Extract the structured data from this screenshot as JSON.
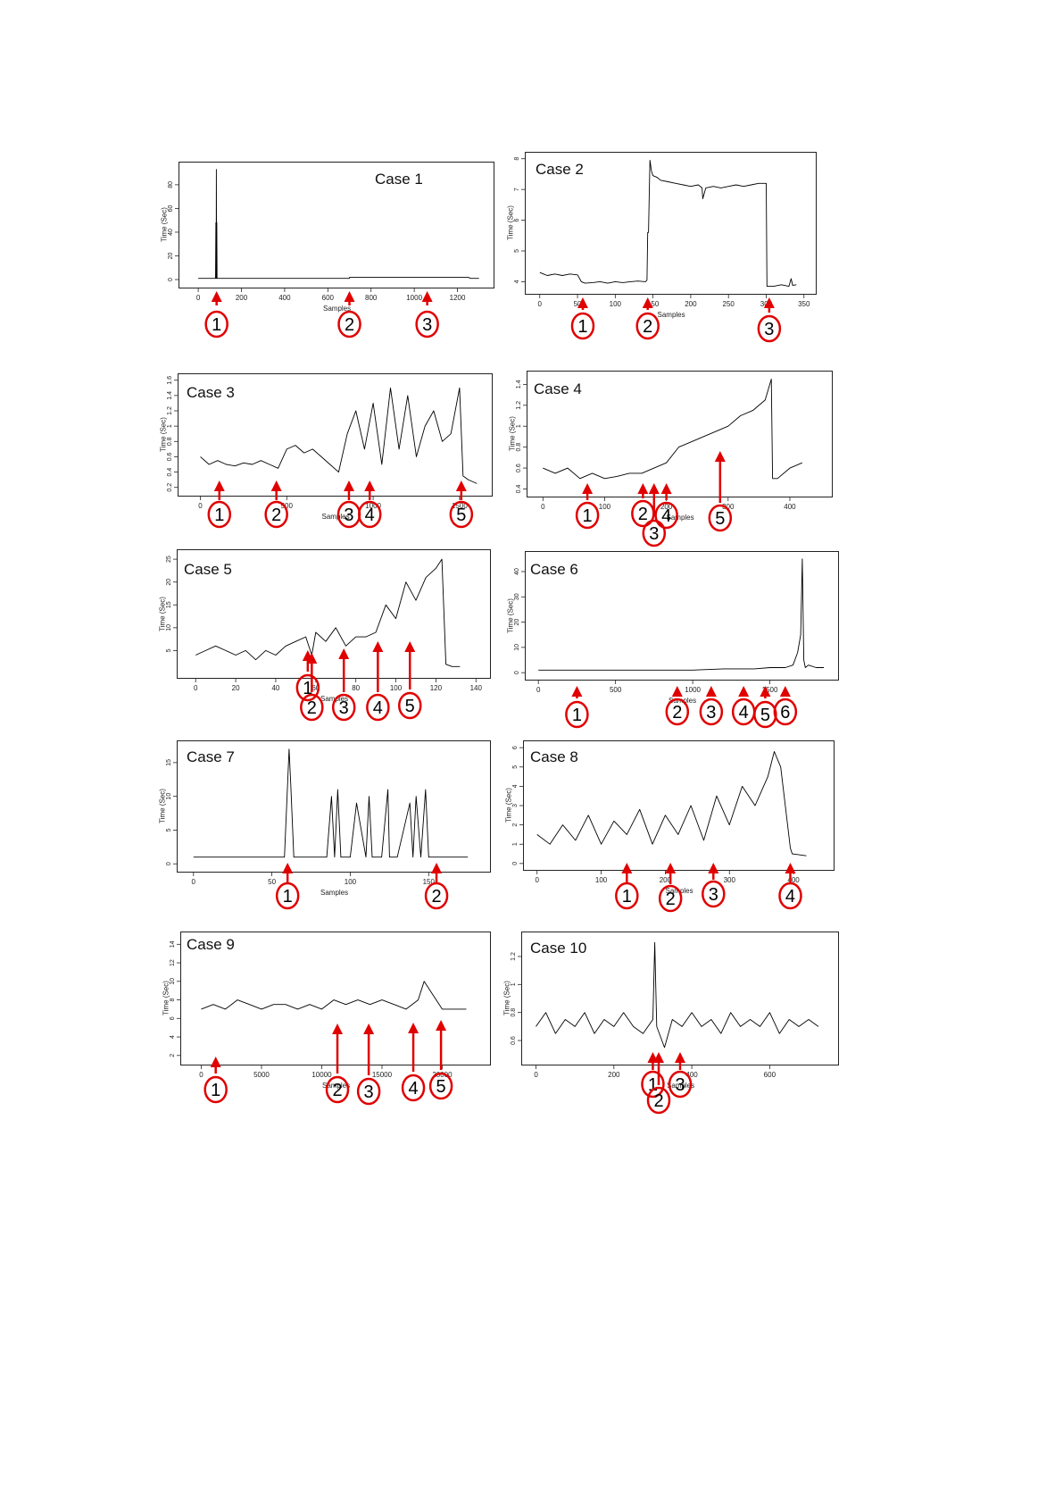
{
  "figure": {
    "accent_color": "#e00000",
    "line_color": "#000000"
  },
  "chart_data": [
    {
      "type": "line",
      "title": "Case 1",
      "ylabel": "Time (Sec)",
      "xlabel": "Samples",
      "x_ticks": [
        0,
        200,
        400,
        600,
        800,
        1000,
        1200
      ],
      "y_ticks": [
        0,
        20,
        40,
        60,
        80
      ],
      "xlim": [
        -50,
        1330
      ],
      "ylim": [
        -3,
        95
      ],
      "grid": false,
      "series": [
        {
          "x": [
            0,
            20,
            40,
            60,
            70,
            80,
            82,
            83,
            84,
            85,
            86,
            87,
            88,
            90,
            100,
            150,
            200,
            300,
            400,
            500,
            600,
            650,
            700,
            701,
            750,
            800,
            900,
            1000,
            1100,
            1200,
            1250,
            1260,
            1300
          ],
          "y": [
            1,
            1,
            1,
            1,
            1,
            1,
            48,
            1,
            93,
            1,
            48,
            1,
            1,
            1,
            1,
            1,
            1,
            1,
            1,
            1,
            1,
            1,
            1,
            2,
            2,
            2,
            2,
            2,
            2,
            2,
            2,
            1,
            1
          ]
        }
      ],
      "annotations": [
        {
          "label": "1",
          "x": 85
        },
        {
          "label": "2",
          "x": 700
        },
        {
          "label": "3",
          "x": 1060
        }
      ]
    },
    {
      "type": "line",
      "title": "Case 2",
      "ylabel": "Time (Sec)",
      "xlabel": "Samples",
      "x_ticks": [
        0,
        50,
        100,
        150,
        200,
        250,
        300,
        350
      ],
      "y_ticks": [
        4,
        5,
        6,
        7,
        8
      ],
      "xlim": [
        -8,
        355
      ],
      "ylim": [
        3.75,
        8.05
      ],
      "grid": false,
      "series": [
        {
          "x": [
            0,
            5,
            10,
            20,
            30,
            40,
            50,
            55,
            60,
            70,
            80,
            90,
            100,
            110,
            120,
            130,
            140,
            142,
            143,
            144,
            146,
            148,
            150,
            155,
            160,
            170,
            180,
            190,
            200,
            210,
            215,
            216,
            220,
            230,
            240,
            250,
            260,
            270,
            280,
            290,
            300,
            301,
            302,
            305,
            310,
            320,
            330,
            333,
            335,
            340
          ],
          "y": [
            4.3,
            4.25,
            4.2,
            4.25,
            4.2,
            4.25,
            4.22,
            4.0,
            3.95,
            3.97,
            4.0,
            3.95,
            4.0,
            3.97,
            4.0,
            4.02,
            4.0,
            4.05,
            5.6,
            5.6,
            7.95,
            7.6,
            7.45,
            7.4,
            7.3,
            7.25,
            7.2,
            7.15,
            7.1,
            7.15,
            7.05,
            6.7,
            7.05,
            7.1,
            7.05,
            7.1,
            7.15,
            7.1,
            7.15,
            7.2,
            7.2,
            3.85,
            3.85,
            3.85,
            3.85,
            3.9,
            3.85,
            4.1,
            3.88,
            3.9
          ]
        }
      ],
      "annotations": [
        {
          "label": "1",
          "x": 57
        },
        {
          "label": "2",
          "x": 143
        },
        {
          "label": "3",
          "x": 304
        }
      ]
    },
    {
      "type": "line",
      "title": "Case 3",
      "ylabel": "Time (Sec)",
      "xlabel": "Samples",
      "x_ticks": [
        0,
        500,
        1000,
        1500
      ],
      "y_ticks": [
        0.2,
        0.4,
        0.6,
        0.8,
        1.0,
        1.2,
        1.4,
        1.6
      ],
      "xlim": [
        -80,
        1640
      ],
      "ylim": [
        0.15,
        1.62
      ],
      "grid": false,
      "series": [
        {
          "x": [
            0,
            50,
            100,
            150,
            200,
            250,
            300,
            350,
            400,
            450,
            500,
            550,
            600,
            650,
            700,
            750,
            800,
            850,
            900,
            950,
            1000,
            1050,
            1100,
            1150,
            1200,
            1250,
            1300,
            1350,
            1400,
            1450,
            1500,
            1520,
            1550,
            1600
          ],
          "y": [
            0.6,
            0.5,
            0.55,
            0.5,
            0.48,
            0.52,
            0.5,
            0.55,
            0.5,
            0.45,
            0.7,
            0.75,
            0.65,
            0.7,
            0.6,
            0.5,
            0.4,
            0.9,
            1.2,
            0.7,
            1.3,
            0.5,
            1.5,
            0.7,
            1.4,
            0.6,
            1.0,
            1.2,
            0.8,
            0.9,
            1.5,
            0.35,
            0.3,
            0.25
          ]
        }
      ],
      "annotations": [
        {
          "label": "1",
          "x": 110
        },
        {
          "label": "2",
          "x": 440
        },
        {
          "label": "3",
          "x": 860
        },
        {
          "label": "4",
          "x": 980
        },
        {
          "label": "5",
          "x": 1510
        }
      ]
    },
    {
      "type": "line",
      "title": "Case 4",
      "ylabel": "Time (Sec)",
      "xlabel": "Samples",
      "x_ticks": [
        0,
        100,
        200,
        300,
        400
      ],
      "y_ticks": [
        0.4,
        0.6,
        0.8,
        1.0,
        1.2,
        1.4
      ],
      "xlim": [
        -12,
        455
      ],
      "ylim": [
        0.37,
        1.48
      ],
      "grid": false,
      "series": [
        {
          "x": [
            0,
            20,
            40,
            60,
            80,
            100,
            120,
            140,
            160,
            180,
            200,
            220,
            240,
            260,
            280,
            300,
            320,
            340,
            360,
            370,
            372,
            380,
            400,
            420
          ],
          "y": [
            0.6,
            0.55,
            0.6,
            0.5,
            0.55,
            0.5,
            0.52,
            0.55,
            0.55,
            0.6,
            0.65,
            0.8,
            0.85,
            0.9,
            0.95,
            1.0,
            1.1,
            1.15,
            1.25,
            1.45,
            0.5,
            0.5,
            0.6,
            0.65
          ]
        }
      ],
      "annotations": [
        {
          "label": "1",
          "x": 72
        },
        {
          "label": "2",
          "x": 162
        },
        {
          "label": "3",
          "x": 180
        },
        {
          "label": "4",
          "x": 200
        },
        {
          "label": "5",
          "x": 287
        }
      ]
    },
    {
      "type": "line",
      "title": "Case 5",
      "ylabel": "Time (Sec)",
      "xlabel": "Samples",
      "x_ticks": [
        0,
        20,
        40,
        60,
        80,
        100,
        120,
        140
      ],
      "y_ticks": [
        5,
        10,
        15,
        20,
        25
      ],
      "xlim": [
        -5,
        143
      ],
      "ylim": [
        0,
        26
      ],
      "grid": false,
      "series": [
        {
          "x": [
            0,
            5,
            10,
            15,
            20,
            25,
            30,
            35,
            40,
            45,
            50,
            55,
            58,
            60,
            65,
            70,
            75,
            80,
            85,
            90,
            95,
            100,
            105,
            110,
            115,
            120,
            123,
            125,
            128,
            132
          ],
          "y": [
            4,
            5,
            6,
            5,
            4,
            5,
            3,
            5,
            4,
            6,
            7,
            8,
            4,
            9,
            7,
            10,
            6,
            8,
            8,
            9,
            15,
            12,
            20,
            16,
            21,
            23,
            25,
            2,
            1.5,
            1.5
          ]
        }
      ],
      "annotations": [
        {
          "label": "1",
          "x": 56
        },
        {
          "label": "2",
          "x": 58
        },
        {
          "label": "3",
          "x": 74
        },
        {
          "label": "4",
          "x": 91
        },
        {
          "label": "5",
          "x": 107
        }
      ]
    },
    {
      "type": "line",
      "title": "Case 6",
      "ylabel": "Time (Sec)",
      "xlabel": "Samples",
      "x_ticks": [
        0,
        500,
        1000,
        1500
      ],
      "y_ticks": [
        0,
        10,
        20,
        30,
        40
      ],
      "xlim": [
        -30,
        1890
      ],
      "ylim": [
        -1,
        46
      ],
      "grid": false,
      "series": [
        {
          "x": [
            0,
            200,
            400,
            600,
            800,
            1000,
            1200,
            1400,
            1500,
            1600,
            1650,
            1680,
            1700,
            1710,
            1720,
            1730,
            1750,
            1800,
            1850
          ],
          "y": [
            1,
            1,
            1,
            1,
            1,
            1,
            1.5,
            1.5,
            2,
            2,
            3,
            8,
            15,
            45,
            5,
            2,
            3,
            2,
            2
          ]
        }
      ],
      "annotations": [
        {
          "label": "1",
          "x": 250
        },
        {
          "label": "2",
          "x": 900
        },
        {
          "label": "3",
          "x": 1120
        },
        {
          "label": "4",
          "x": 1330
        },
        {
          "label": "5",
          "x": 1470
        },
        {
          "label": "6",
          "x": 1600
        }
      ]
    },
    {
      "type": "line",
      "title": "Case 7",
      "ylabel": "Time (Sec)",
      "xlabel": "Samples",
      "x_ticks": [
        0,
        50,
        100,
        150
      ],
      "y_ticks": [
        0,
        5,
        10,
        15
      ],
      "xlim": [
        -5,
        184
      ],
      "ylim": [
        -0.5,
        17.5
      ],
      "grid": false,
      "series": [
        {
          "x": [
            0,
            20,
            40,
            58,
            61,
            62,
            64,
            66,
            68,
            85,
            88,
            90,
            92,
            94,
            100,
            104,
            110,
            112,
            114,
            120,
            124,
            125,
            127,
            130,
            138,
            140,
            142,
            145,
            148,
            150,
            160,
            175
          ],
          "y": [
            1,
            1,
            1,
            1,
            17,
            12,
            1,
            1,
            1,
            1,
            10,
            1,
            11,
            1,
            1,
            9,
            1,
            10,
            1,
            1,
            11,
            1,
            1,
            1,
            9,
            1,
            10,
            1,
            11,
            1,
            1,
            1
          ]
        }
      ],
      "annotations": [
        {
          "label": "1",
          "x": 60
        },
        {
          "label": "2",
          "x": 155
        }
      ]
    },
    {
      "type": "line",
      "title": "Case 8",
      "ylabel": "Time (Sec)",
      "xlabel": "Samples",
      "x_ticks": [
        0,
        100,
        200,
        300,
        400
      ],
      "y_ticks": [
        0,
        1,
        2,
        3,
        4,
        5,
        6
      ],
      "xlim": [
        -8,
        450
      ],
      "ylim": [
        -0.1,
        6.1
      ],
      "grid": false,
      "series": [
        {
          "x": [
            0,
            20,
            40,
            60,
            80,
            100,
            120,
            140,
            160,
            180,
            200,
            220,
            240,
            260,
            280,
            300,
            320,
            340,
            360,
            370,
            380,
            395,
            398,
            420
          ],
          "y": [
            1.5,
            1.0,
            2.0,
            1.2,
            2.5,
            1.0,
            2.2,
            1.5,
            2.8,
            1.0,
            2.5,
            1.5,
            3.0,
            1.2,
            3.5,
            2.0,
            4.0,
            3.0,
            4.5,
            5.8,
            5.0,
            0.8,
            0.5,
            0.4
          ]
        }
      ],
      "annotations": [
        {
          "label": "1",
          "x": 140
        },
        {
          "label": "2",
          "x": 208
        },
        {
          "label": "3",
          "x": 275
        },
        {
          "label": "4",
          "x": 395
        }
      ]
    },
    {
      "type": "line",
      "title": "Case 9",
      "ylabel": "Time (Sec)",
      "xlabel": "Samples",
      "x_ticks": [
        0,
        5000,
        10000,
        15000,
        20000
      ],
      "y_ticks": [
        2,
        4,
        6,
        8,
        10,
        12,
        14
      ],
      "xlim": [
        -1000,
        23300
      ],
      "ylim": [
        1.5,
        14.8
      ],
      "grid": false,
      "series": [
        {
          "x": [
            0,
            1000,
            2000,
            3000,
            4000,
            5000,
            6000,
            7000,
            8000,
            9000,
            10000,
            11000,
            12000,
            13000,
            14000,
            15000,
            16000,
            17000,
            18000,
            18500,
            19000,
            20000,
            21000,
            22000
          ],
          "y": [
            7,
            7.5,
            7,
            8,
            7.5,
            7,
            7.5,
            7.5,
            7,
            7.5,
            7,
            8,
            7.5,
            8,
            7.5,
            8,
            7.5,
            7,
            8,
            10,
            9,
            7,
            7,
            7
          ]
        }
      ],
      "annotations": [
        {
          "label": "1",
          "x": 1200
        },
        {
          "label": "2",
          "x": 11300
        },
        {
          "label": "3",
          "x": 13900
        },
        {
          "label": "4",
          "x": 17600
        },
        {
          "label": "5",
          "x": 19900
        }
      ]
    },
    {
      "type": "line",
      "title": "Case 10",
      "ylabel": "Time (Sec)",
      "xlabel": "Samples",
      "x_ticks": [
        0,
        200,
        400,
        600
      ],
      "y_ticks": [
        0.6,
        0.8,
        1.0,
        1.2
      ],
      "xlim": [
        -15,
        755
      ],
      "ylim": [
        0.46,
        1.34
      ],
      "grid": false,
      "series": [
        {
          "x": [
            0,
            25,
            50,
            75,
            100,
            125,
            150,
            175,
            200,
            225,
            250,
            275,
            300,
            305,
            307,
            310,
            330,
            350,
            375,
            400,
            425,
            450,
            475,
            500,
            525,
            550,
            575,
            600,
            625,
            650,
            675,
            700,
            725
          ],
          "y": [
            0.7,
            0.8,
            0.65,
            0.75,
            0.7,
            0.8,
            0.65,
            0.75,
            0.7,
            0.8,
            0.7,
            0.65,
            0.75,
            1.3,
            1.05,
            0.7,
            0.55,
            0.75,
            0.7,
            0.8,
            0.7,
            0.75,
            0.65,
            0.8,
            0.7,
            0.75,
            0.7,
            0.8,
            0.65,
            0.75,
            0.7,
            0.75,
            0.7
          ]
        }
      ],
      "annotations": [
        {
          "label": "1",
          "x": 300
        },
        {
          "label": "2",
          "x": 315
        },
        {
          "label": "3",
          "x": 370
        }
      ]
    }
  ]
}
